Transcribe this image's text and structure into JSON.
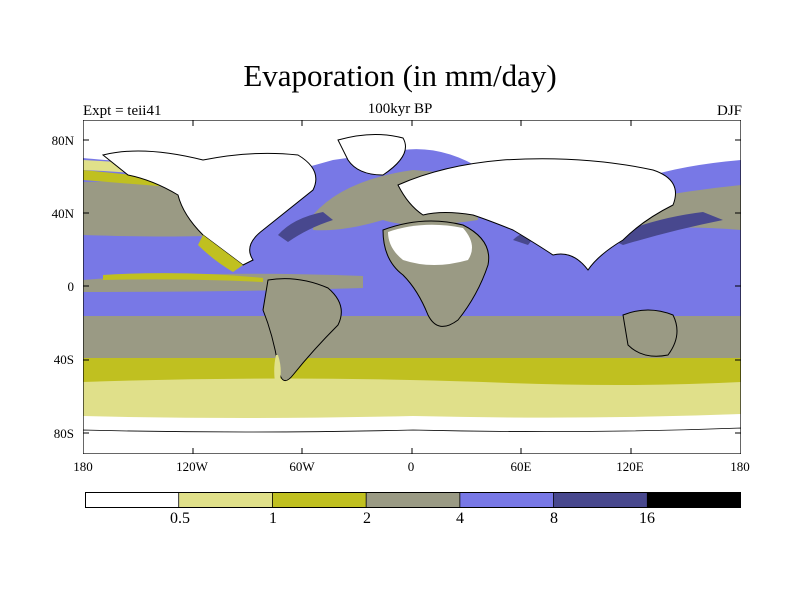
{
  "title": "Evaporation (in mm/day)",
  "experiment": "Expt = teii41",
  "period": "100kyr BP",
  "season": "DJF",
  "lat_ticks": [
    "80N",
    "40N",
    "0",
    "40S",
    "80S"
  ],
  "lon_ticks": [
    "180",
    "120W",
    "60W",
    "0",
    "60E",
    "120E",
    "180"
  ],
  "colorbar": {
    "levels": [
      "0.5",
      "1",
      "2",
      "4",
      "8",
      "16"
    ],
    "colors": [
      "#ffffff",
      "#e0e08a",
      "#c0c020",
      "#9a9a84",
      "#7878e6",
      "#48488e",
      "#000000"
    ]
  }
}
